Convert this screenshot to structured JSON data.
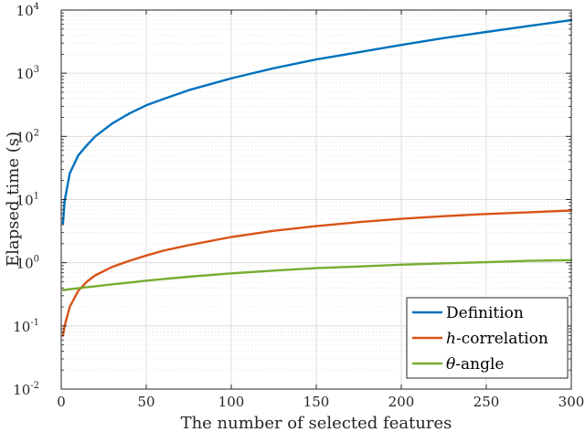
{
  "chart_data": {
    "type": "line",
    "title": "",
    "xlabel": "The number of selected features",
    "ylabel": "Elapsed time (s)",
    "xlim": [
      0,
      300
    ],
    "ylim": [
      0.01,
      10000
    ],
    "yscale": "log",
    "grid": true,
    "legend_position": "bottom-right",
    "x_ticks": [
      "0",
      "50",
      "100",
      "150",
      "200",
      "250",
      "300"
    ],
    "y_ticks": [
      {
        "base": "10",
        "exp": "-2"
      },
      {
        "base": "10",
        "exp": "-1"
      },
      {
        "base": "10",
        "exp": "0"
      },
      {
        "base": "10",
        "exp": "1"
      },
      {
        "base": "10",
        "exp": "2"
      },
      {
        "base": "10",
        "exp": "3"
      },
      {
        "base": "10",
        "exp": "4"
      }
    ],
    "x": [
      1,
      2,
      5,
      10,
      15,
      20,
      30,
      40,
      50,
      60,
      75,
      100,
      125,
      150,
      175,
      200,
      225,
      250,
      275,
      300
    ],
    "series": [
      {
        "name": "Definition",
        "legend_prefix": "",
        "legend_suffix": "Definition",
        "color": "#0072BD",
        "values": [
          4.2,
          9.5,
          26,
          50,
          72,
          100,
          160,
          230,
          310,
          390,
          540,
          830,
          1200,
          1650,
          2150,
          2800,
          3600,
          4500,
          5600,
          6900
        ]
      },
      {
        "name": "h-correlation",
        "legend_prefix": "h",
        "legend_suffix": "-correlation",
        "color": "#D95319",
        "values": [
          0.07,
          0.1,
          0.2,
          0.36,
          0.5,
          0.63,
          0.86,
          1.07,
          1.3,
          1.55,
          1.9,
          2.55,
          3.2,
          3.8,
          4.4,
          4.95,
          5.45,
          5.9,
          6.3,
          6.7
        ]
      },
      {
        "name": "θ-angle",
        "legend_prefix": "θ",
        "legend_suffix": "-angle",
        "color": "#77AC30",
        "values": [
          0.37,
          0.37,
          0.38,
          0.395,
          0.41,
          0.425,
          0.455,
          0.485,
          0.52,
          0.55,
          0.6,
          0.68,
          0.75,
          0.82,
          0.87,
          0.93,
          0.98,
          1.02,
          1.07,
          1.1
        ]
      }
    ]
  }
}
